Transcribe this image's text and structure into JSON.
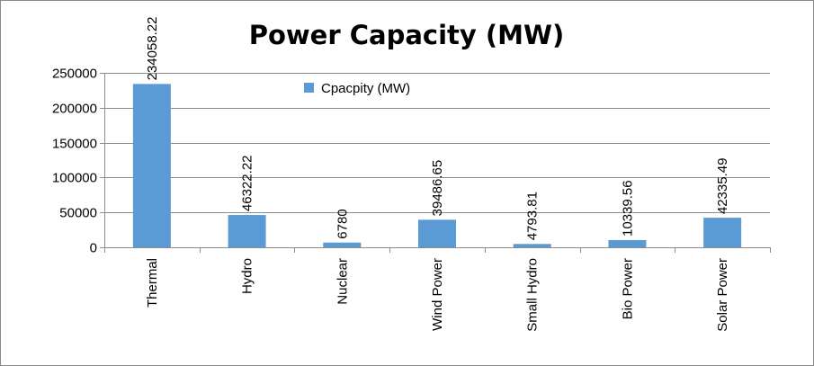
{
  "chart_data": {
    "type": "bar",
    "title": "Power Capacity (MW)",
    "categories": [
      "Thermal",
      "Hydro",
      "Nuclear",
      "Wind Power",
      "Small Hydro",
      "Bio Power",
      "Solar Power"
    ],
    "series": [
      {
        "name": "Cpacpity (MW)",
        "values": [
          234058.22,
          46322.22,
          6780,
          39486.65,
          4793.81,
          10339.56,
          42335.49
        ],
        "labels": [
          "234058.22",
          "46322.22",
          "6780",
          "39486.65",
          "4793.81",
          "10339.56",
          "42335.49"
        ],
        "color": "#5b9bd5"
      }
    ],
    "yticks": [
      "0",
      "50000",
      "100000",
      "150000",
      "200000",
      "250000"
    ],
    "ylim": [
      0,
      250000
    ],
    "grid": true,
    "legend_position": "top-center",
    "xlabel": "",
    "ylabel": ""
  }
}
